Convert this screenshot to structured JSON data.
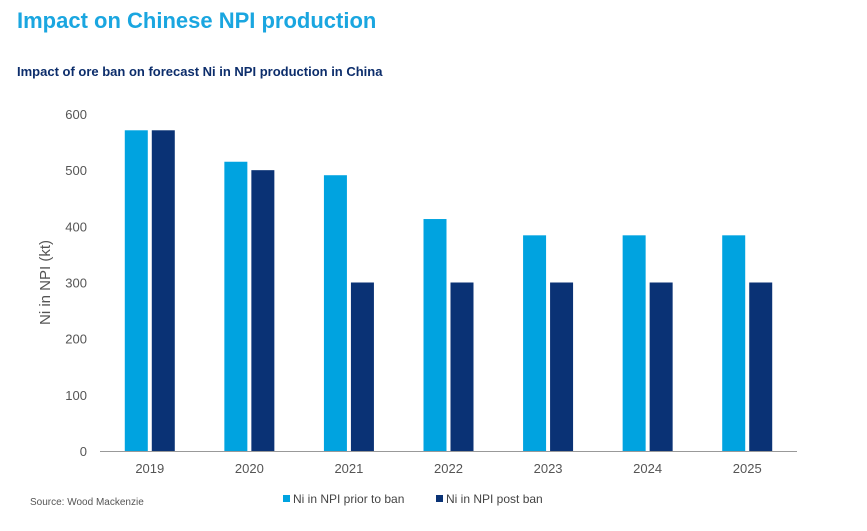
{
  "header": {
    "title": "Impact on Chinese NPI production"
  },
  "footer": {
    "source": "Source: Wood Mackenzie"
  },
  "chart_data": {
    "type": "bar",
    "title": "Impact of ore ban on forecast Ni in NPI production in China",
    "xlabel": "",
    "ylabel": "Ni in NPI (kt)",
    "ylim": [
      0,
      600
    ],
    "yticks": [
      0,
      100,
      200,
      300,
      400,
      500,
      600
    ],
    "grid": false,
    "legend_position": "bottom",
    "categories": [
      "2019",
      "2020",
      "2021",
      "2022",
      "2023",
      "2024",
      "2025"
    ],
    "series": [
      {
        "name": "Ni in NPI prior to ban",
        "color": "#00a3e0",
        "values": [
          571,
          515,
          491,
          413,
          384,
          384,
          384
        ]
      },
      {
        "name": "Ni in NPI post ban",
        "color": "#0a3275",
        "values": [
          571,
          500,
          300,
          300,
          300,
          300,
          300
        ]
      }
    ]
  }
}
